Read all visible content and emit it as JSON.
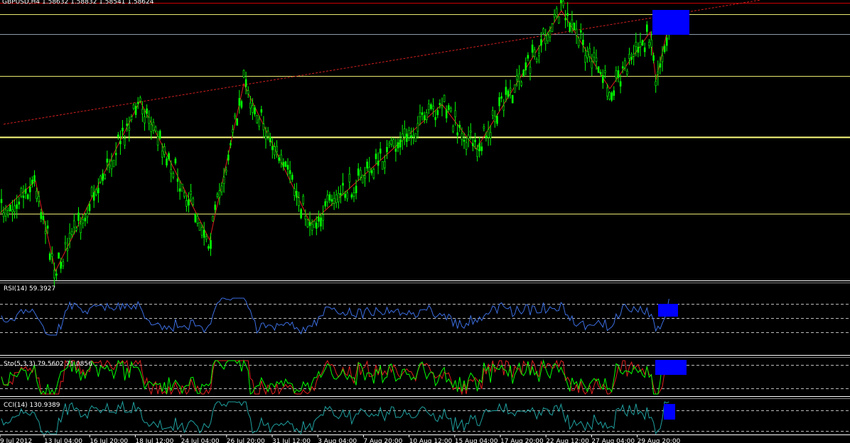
{
  "header": {
    "title": "GBPUSD,H4 1.58632 1.58832 1.58541 1.58624"
  },
  "indicators": [
    "RSI(14) 59.3927",
    "Sto(5,3,3) 79.5602 71.0856",
    "CCI(14) 130.9389"
  ],
  "time_axis": [
    "9 Jul 2012",
    "13 Jul 04:00",
    "16 Jul 20:00",
    "18 Jul 12:00",
    "24 Jul 04:00",
    "26 Jul 20:00",
    "31 Jul 12:00",
    "3 Aug 04:00",
    "7 Aug 20:00",
    "10 Aug 12:00",
    "15 Aug 04:00",
    "17 Aug 20:00",
    "22 Aug 12:00",
    "27 Aug 04:00",
    "29 Aug 20:00"
  ]
}
